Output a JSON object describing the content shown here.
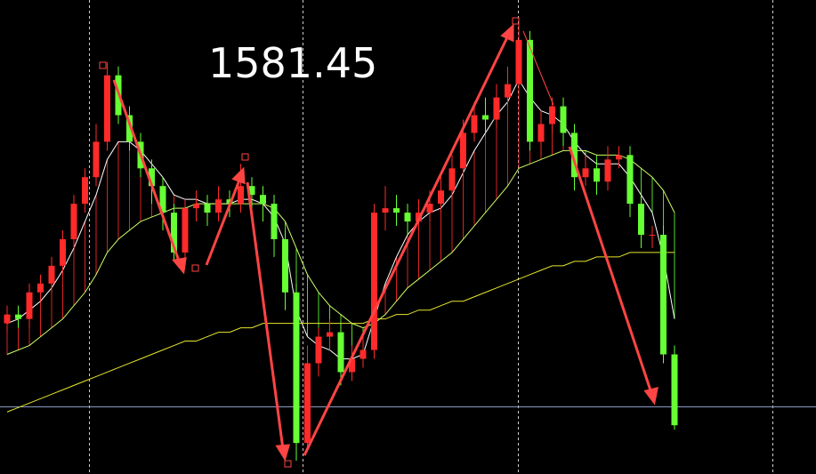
{
  "chart_data": {
    "type": "candlestick",
    "annotation": "1581.45",
    "ylim": [
      1563,
      1670
    ],
    "up_color": "#ff2a2a",
    "down_color": "#66ff33",
    "ohlc": [
      [
        1597,
        1601,
        1595,
        1599
      ],
      [
        1599,
        1601,
        1596,
        1598
      ],
      [
        1598,
        1606,
        1596,
        1604
      ],
      [
        1604,
        1608,
        1602,
        1606
      ],
      [
        1606,
        1612,
        1604,
        1610
      ],
      [
        1610,
        1618,
        1608,
        1616
      ],
      [
        1616,
        1626,
        1614,
        1624
      ],
      [
        1624,
        1632,
        1622,
        1630
      ],
      [
        1630,
        1642,
        1628,
        1638
      ],
      [
        1638,
        1656,
        1636,
        1653
      ],
      [
        1653,
        1655,
        1642,
        1644
      ],
      [
        1644,
        1646,
        1636,
        1638
      ],
      [
        1638,
        1640,
        1630,
        1632
      ],
      [
        1632,
        1634,
        1624,
        1628
      ],
      [
        1628,
        1630,
        1618,
        1622
      ],
      [
        1622,
        1624,
        1611,
        1613
      ],
      [
        1613,
        1625,
        1611,
        1623
      ],
      [
        1623,
        1627,
        1620,
        1624
      ],
      [
        1624,
        1626,
        1619,
        1622
      ],
      [
        1622,
        1628,
        1620,
        1625
      ],
      [
        1625,
        1627,
        1621,
        1624
      ],
      [
        1624,
        1633,
        1622,
        1628
      ],
      [
        1628,
        1630,
        1623,
        1626
      ],
      [
        1626,
        1628,
        1620,
        1624
      ],
      [
        1624,
        1626,
        1612,
        1616
      ],
      [
        1616,
        1618,
        1600,
        1604
      ],
      [
        1604,
        1606,
        1566,
        1570
      ],
      [
        1570,
        1592,
        1568,
        1588
      ],
      [
        1588,
        1596,
        1585,
        1594
      ],
      [
        1594,
        1598,
        1591,
        1595
      ],
      [
        1595,
        1597,
        1583,
        1586
      ],
      [
        1586,
        1592,
        1584,
        1589
      ],
      [
        1589,
        1594,
        1587,
        1591
      ],
      [
        1591,
        1624,
        1589,
        1622
      ],
      [
        1622,
        1628,
        1618,
        1623
      ],
      [
        1623,
        1626,
        1619,
        1622
      ],
      [
        1622,
        1624,
        1617,
        1620
      ],
      [
        1620,
        1625,
        1618,
        1622
      ],
      [
        1622,
        1627,
        1620,
        1624
      ],
      [
        1624,
        1630,
        1622,
        1627
      ],
      [
        1627,
        1635,
        1625,
        1632
      ],
      [
        1632,
        1643,
        1630,
        1640
      ],
      [
        1640,
        1647,
        1638,
        1644
      ],
      [
        1644,
        1648,
        1640,
        1643
      ],
      [
        1643,
        1651,
        1641,
        1648
      ],
      [
        1648,
        1655,
        1646,
        1651
      ],
      [
        1651,
        1665,
        1649,
        1661
      ],
      [
        1661,
        1663,
        1636,
        1638
      ],
      [
        1638,
        1645,
        1635,
        1642
      ],
      [
        1642,
        1648,
        1640,
        1646
      ],
      [
        1646,
        1648,
        1637,
        1640
      ],
      [
        1640,
        1642,
        1627,
        1630
      ],
      [
        1630,
        1635,
        1628,
        1632
      ],
      [
        1632,
        1634,
        1626,
        1629
      ],
      [
        1629,
        1637,
        1627,
        1634
      ],
      [
        1634,
        1637,
        1632,
        1635
      ],
      [
        1635,
        1637,
        1621,
        1624
      ],
      [
        1624,
        1626,
        1614,
        1617
      ],
      [
        1617,
        1619,
        1614,
        1617
      ],
      [
        1617,
        1619,
        1588,
        1590
      ],
      [
        1590,
        1592,
        1573,
        1574
      ]
    ],
    "lines": [
      {
        "color": "#ffffff",
        "values": [
          1597,
          1598,
          1600,
          1602,
          1605,
          1609,
          1614,
          1620,
          1626,
          1634,
          1638,
          1638,
          1636,
          1633,
          1630,
          1626,
          1625,
          1625,
          1624,
          1624,
          1624,
          1625,
          1625,
          1624,
          1621,
          1615,
          1600,
          1594,
          1592,
          1591,
          1589,
          1589,
          1590,
          1598,
          1606,
          1612,
          1617,
          1620,
          1622,
          1623,
          1626,
          1631,
          1636,
          1640,
          1644,
          1647,
          1652,
          1648,
          1645,
          1644,
          1642,
          1638,
          1635,
          1633,
          1633,
          1633,
          1630,
          1626,
          1622,
          1612,
          1598
        ]
      },
      {
        "color": "#ccff66",
        "values": [
          1590,
          1591,
          1592,
          1594,
          1596,
          1598,
          1601,
          1604,
          1608,
          1613,
          1616,
          1618,
          1620,
          1621,
          1622,
          1623,
          1623,
          1624,
          1624,
          1624,
          1624,
          1624,
          1624,
          1624,
          1623,
          1620,
          1614,
          1608,
          1604,
          1601,
          1599,
          1597,
          1596,
          1597,
          1599,
          1602,
          1605,
          1607,
          1609,
          1611,
          1613,
          1616,
          1619,
          1622,
          1625,
          1628,
          1632,
          1633,
          1634,
          1635,
          1636,
          1636,
          1636,
          1635,
          1635,
          1635,
          1634,
          1632,
          1630,
          1627,
          1622
        ]
      },
      {
        "color": "#e6e62e",
        "values": [
          1577,
          1578,
          1579,
          1580,
          1581,
          1582,
          1583,
          1584,
          1585,
          1586,
          1587,
          1588,
          1589,
          1590,
          1591,
          1592,
          1593,
          1593,
          1594,
          1595,
          1595,
          1596,
          1596,
          1597,
          1597,
          1597,
          1597,
          1597,
          1597,
          1597,
          1597,
          1597,
          1597,
          1598,
          1598,
          1599,
          1599,
          1600,
          1600,
          1601,
          1602,
          1602,
          1603,
          1604,
          1605,
          1606,
          1607,
          1608,
          1609,
          1610,
          1610,
          1611,
          1611,
          1612,
          1612,
          1612,
          1613,
          1613,
          1613,
          1613,
          1613
        ]
      }
    ]
  }
}
